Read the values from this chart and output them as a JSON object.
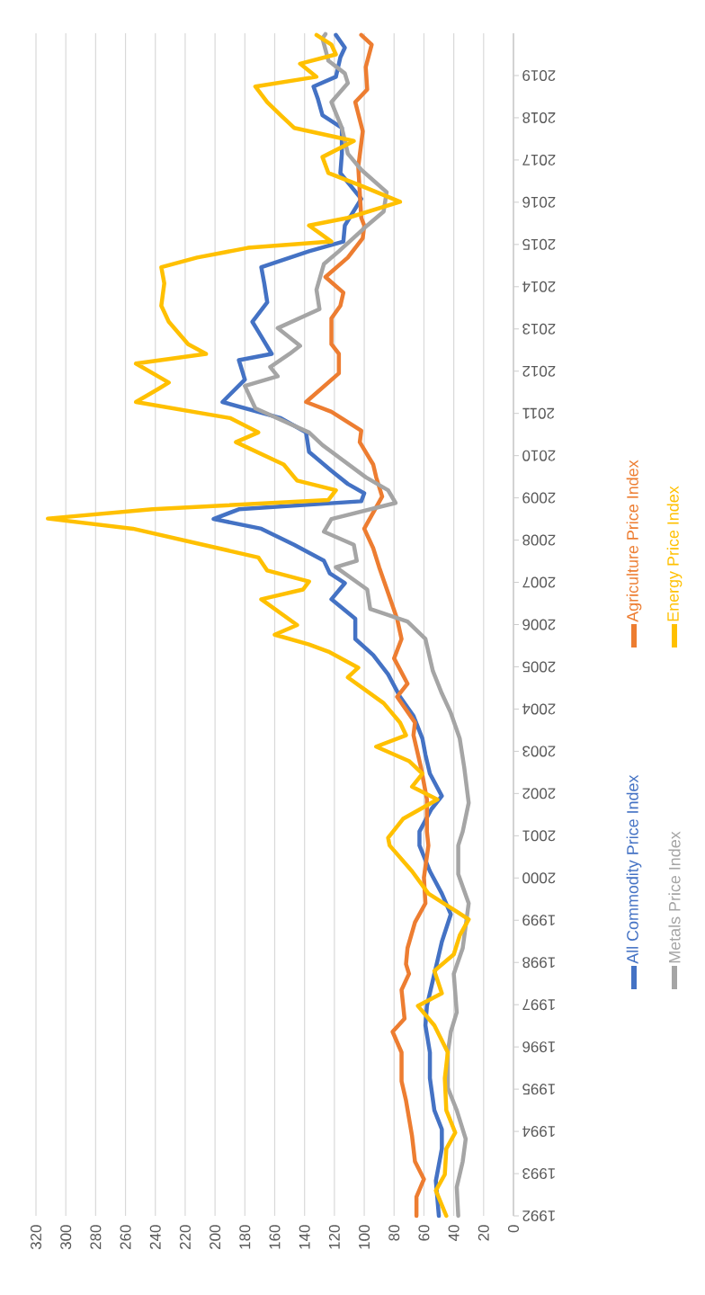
{
  "chart_data": {
    "type": "line",
    "xlim": [
      320,
      0
    ],
    "ylim": [
      1992,
      2020
    ],
    "xticks": [
      0,
      20,
      40,
      60,
      80,
      100,
      120,
      140,
      160,
      180,
      200,
      220,
      240,
      260,
      280,
      300,
      320
    ],
    "yticks": [
      1992,
      1993,
      1994,
      1995,
      1996,
      1997,
      1998,
      1999,
      2000,
      2001,
      2002,
      2003,
      2004,
      2005,
      2006,
      2007,
      2008,
      2009,
      2010,
      2011,
      2012,
      2013,
      2014,
      2015,
      2016,
      2017,
      2018,
      2019
    ],
    "grid": "x",
    "legend": "right",
    "marker": "none",
    "line_style": "solid",
    "series": [
      {
        "name": "All Commodity Price Index",
        "color": "#4472c4",
        "values": [
          1992.0,
          1992.83,
          1993.59,
          1994.05,
          1994.5,
          1995.26,
          1995.87,
          1996.51,
          1996.97,
          1997.58,
          1998.03,
          1998.49,
          1999.14,
          1999.63,
          2000.16,
          2000.77,
          2001.1,
          2001.63,
          2001.94,
          2002.47,
          2002.92,
          2003.3,
          2003.84,
          2004.29,
          2004.82,
          2005.28,
          2005.66,
          2006.14,
          2006.6,
          2006.98,
          2007.21,
          2007.51,
          2007.89,
          2008.27,
          2008.5,
          2008.73,
          2008.92,
          2009.11,
          2009.33,
          2009.64,
          2010.09,
          2010.55,
          2010.89,
          2011.27,
          2011.8,
          2012.26,
          2012.41,
          2012.94,
          2013.17,
          2013.63,
          2014.08,
          2014.46,
          2014.84,
          2015.07,
          2015.45,
          2016.08,
          2016.69,
          2017.15,
          2017.76,
          2018.06,
          2018.44,
          2018.74,
          2018.97,
          2019.43,
          2019.66,
          2019.96
        ],
        "x": [
          50,
          52,
          48,
          48,
          53,
          56,
          56,
          59,
          58,
          54,
          51,
          48,
          42,
          48,
          56,
          63,
          63,
          55,
          48,
          56,
          59,
          61,
          67,
          76,
          84,
          94,
          106,
          106,
          122,
          113,
          123,
          127,
          147,
          169,
          201,
          184,
          102,
          100,
          111,
          122,
          137,
          139,
          156,
          195,
          180,
          184,
          162,
          171,
          175,
          165,
          167,
          169,
          137,
          114,
          113,
          102,
          116,
          115,
          115,
          128,
          131,
          134,
          119,
          116,
          113,
          119
        ]
      },
      {
        "name": "Agriculture Price Index",
        "color": "#ed7d31",
        "values": [
          1992.0,
          1992.45,
          1992.87,
          1993.29,
          1993.9,
          1994.73,
          1995.19,
          1995.87,
          1996.36,
          1996.67,
          1997.35,
          1997.73,
          1997.96,
          1998.34,
          1998.95,
          1999.4,
          2000.01,
          2000.77,
          2001.1,
          2001.86,
          2002.62,
          2003.38,
          2003.68,
          2004.29,
          2004.6,
          2005.2,
          2005.66,
          2006.14,
          2006.75,
          2007.36,
          2007.81,
          2008.27,
          2009.03,
          2009.49,
          2009.79,
          2010.32,
          2010.59,
          2011.04,
          2011.27,
          2011.95,
          2012.41,
          2012.64,
          2013.25,
          2013.55,
          2013.86,
          2014.23,
          2014.69,
          2015.15,
          2015.45,
          2015.63,
          2016.84,
          2017.68,
          2018.37,
          2018.67,
          2019.2,
          2019.73,
          2019.96
        ],
        "x": [
          65,
          65,
          60,
          66,
          68,
          72,
          75,
          75,
          81,
          73,
          75,
          70,
          72,
          71,
          66,
          59,
          60,
          57,
          58,
          58,
          62,
          67,
          66,
          78,
          71,
          80,
          75,
          78,
          84,
          90,
          94,
          100,
          88,
          92,
          94,
          103,
          102,
          122,
          139,
          117,
          117,
          122,
          122,
          116,
          114,
          126,
          111,
          101,
          100,
          102,
          104,
          101,
          106,
          98,
          99,
          95,
          102
        ]
      },
      {
        "name": "Metals Price Index",
        "color": "#a5a5a5",
        "values": [
          1992.0,
          1992.68,
          1993.29,
          1993.82,
          1994.5,
          1995.03,
          1995.87,
          1996.36,
          1996.82,
          1997.73,
          1998.34,
          1998.87,
          1999.4,
          2000.09,
          2000.77,
          2001.1,
          2001.78,
          2002.62,
          2003.3,
          2003.91,
          2004.37,
          2004.9,
          2005.66,
          2006.07,
          2006.37,
          2006.83,
          2007.36,
          2007.51,
          2007.89,
          2008.2,
          2008.5,
          2008.88,
          2009.18,
          2009.49,
          2010.25,
          2010.55,
          2011.12,
          2011.65,
          2011.88,
          2012.1,
          2012.41,
          2012.6,
          2013.02,
          2013.47,
          2013.93,
          2014.54,
          2014.84,
          2015.45,
          2015.78,
          2016.24,
          2016.77,
          2017.15,
          2017.76,
          2018.37,
          2018.82,
          2019.05,
          2019.35,
          2019.88,
          2019.98
        ],
        "x": [
          37,
          38,
          34,
          32,
          38,
          44,
          44,
          42,
          38,
          40,
          34,
          32,
          30,
          37,
          37,
          34,
          30,
          33,
          36,
          42,
          48,
          54,
          59,
          71,
          96,
          98,
          119,
          105,
          107,
          127,
          122,
          79,
          84,
          99,
          128,
          137,
          173,
          180,
          158,
          163,
          150,
          143,
          158,
          130,
          132,
          127,
          117,
          98,
          87,
          85,
          102,
          111,
          115,
          122,
          111,
          113,
          124,
          128,
          126
        ]
      },
      {
        "name": "Energy Price Index",
        "color": "#ffc000",
        "values": [
          1992.0,
          1992.6,
          1992.98,
          1993.59,
          1993.97,
          1994.5,
          1995.26,
          1995.87,
          1996.51,
          1996.97,
          1997.27,
          1997.8,
          1998.19,
          1998.64,
          1999.02,
          1999.25,
          1999.63,
          2000.16,
          2000.77,
          2000.95,
          2001.4,
          2001.86,
          2002.16,
          2002.47,
          2002.77,
          2003.11,
          2003.38,
          2003.68,
          2004.14,
          2004.75,
          2004.98,
          2005.36,
          2005.53,
          2005.76,
          2005.99,
          2006.6,
          2006.83,
          2007.02,
          2007.28,
          2007.59,
          2007.89,
          2008.27,
          2008.51,
          2008.73,
          2008.95,
          2009.18,
          2009.41,
          2009.79,
          2010.32,
          2010.55,
          2010.89,
          2011.27,
          2011.58,
          2011.73,
          2012.18,
          2012.41,
          2012.64,
          2013.17,
          2013.55,
          2014.08,
          2014.46,
          2014.69,
          2014.92,
          2015.07,
          2015.45,
          2015.63,
          2016.01,
          2016.39,
          2016.69,
          2017.07,
          2017.45,
          2017.76,
          2018.06,
          2018.37,
          2018.74,
          2018.97,
          2019.28,
          2019.5,
          2019.73,
          2019.96
        ],
        "x": [
          45,
          52,
          46,
          45,
          39,
          45,
          46,
          44,
          53,
          64,
          48,
          53,
          40,
          36,
          30,
          40,
          57,
          68,
          83,
          84,
          74,
          51,
          68,
          61,
          70,
          92,
          72,
          76,
          87,
          111,
          104,
          124,
          137,
          160,
          145,
          169,
          141,
          137,
          165,
          171,
          208,
          255,
          312,
          242,
          124,
          119,
          145,
          154,
          186,
          171,
          190,
          253,
          238,
          231,
          253,
          206,
          218,
          231,
          236,
          234,
          236,
          212,
          178,
          122,
          137,
          111,
          76,
          102,
          124,
          128,
          107,
          147,
          156,
          165,
          173,
          132,
          143,
          119,
          122,
          132
        ]
      }
    ]
  }
}
